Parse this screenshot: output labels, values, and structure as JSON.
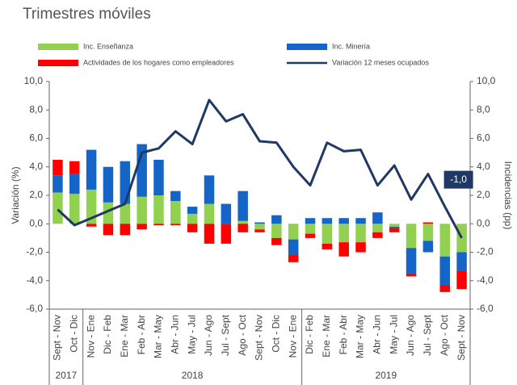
{
  "chart_data": {
    "type": "bar",
    "subtitle": "Trimestres móviles",
    "y_label": "Variación (%)",
    "y2_label": "Incidencias (pp)",
    "categories": [
      "Sept - Nov",
      "Oct - Dic",
      "Nov - Ene",
      "Dic - Feb",
      "Ene - Mar",
      "Feb - Abr",
      "Mar - May",
      "Abr - Jun",
      "May - Jul",
      "Jun - Ago",
      "Jul - Sept",
      "Ago - Oct",
      "Sept - Nov",
      "Oct - Dic",
      "Nov - Ene",
      "Dic - Feb",
      "Ene - Mar",
      "Feb - Abr",
      "Mar - May",
      "Abr - Jun",
      "May - Jul",
      "Jun - Ago",
      "Jul - Sept",
      "Ago - Oct",
      "Sept - Nov"
    ],
    "years": [
      "2017",
      "2018",
      "2019"
    ],
    "series": [
      {
        "name": "Inc. Enseñanza",
        "color": "#92d050",
        "type": "bar",
        "axis": "y2",
        "values": [
          2.2,
          2.1,
          2.4,
          1.5,
          1.4,
          1.9,
          2.0,
          1.6,
          0.7,
          1.4,
          0,
          0.2,
          -0.4,
          -1.0,
          -1.1,
          -0.7,
          -1.4,
          -1.3,
          -1.3,
          -0.6,
          -0.2,
          -1.7,
          -1.2,
          -2.3,
          -2.0
        ]
      },
      {
        "name": "Inc. Minería",
        "color": "#1565c8",
        "type": "bar",
        "axis": "y2",
        "values": [
          1.2,
          1.4,
          2.8,
          2.5,
          3.0,
          3.7,
          2.5,
          0.7,
          0.5,
          2.0,
          1.4,
          2.1,
          0.1,
          0.6,
          -1.1,
          0.4,
          0.4,
          0.4,
          0.4,
          0.8,
          -0.1,
          -1.8,
          -0.8,
          -2.0,
          -1.3
        ]
      },
      {
        "name": "Actividades de los hogares como empleadores",
        "color": "#ff0000",
        "type": "bar",
        "axis": "y2",
        "values": [
          1.1,
          0.9,
          -0.2,
          -0.8,
          -0.8,
          -0.4,
          -0.1,
          -0.1,
          -0.6,
          -1.4,
          -1.4,
          -0.6,
          -0.2,
          -0.5,
          -0.5,
          -0.3,
          -0.4,
          -1.0,
          -0.7,
          -0.4,
          -0.3,
          -0.2,
          0.1,
          -0.5,
          -1.3
        ]
      },
      {
        "name": "Variación 12 meses ocupados",
        "color": "#1f3864",
        "type": "line",
        "values": [
          1.0,
          -0.1,
          0.4,
          0.9,
          1.4,
          5.0,
          5.3,
          6.5,
          5.6,
          8.7,
          7.2,
          7.7,
          5.8,
          5.7,
          4.0,
          2.7,
          5.7,
          5.1,
          5.2,
          2.7,
          4.1,
          1.7,
          3.5,
          1.2,
          -1.0
        ]
      }
    ],
    "annotation": "-1,0",
    "ylim": [
      -6,
      10
    ],
    "yticks": [
      {
        "value": -6,
        "label": "-6,0"
      },
      {
        "value": -4,
        "label": "-4,0"
      },
      {
        "value": -2,
        "label": "-2,0"
      },
      {
        "value": 0,
        "label": "0,0"
      },
      {
        "value": 2,
        "label": "2,0"
      },
      {
        "value": 4,
        "label": "4,0"
      },
      {
        "value": 6,
        "label": "6,0"
      },
      {
        "value": 8,
        "label": "8,0"
      },
      {
        "value": 10,
        "label": "10,0"
      }
    ],
    "y2lim": [
      -6,
      10
    ],
    "y2ticks": [
      {
        "value": -6,
        "label": "-6,0"
      },
      {
        "value": -4,
        "label": "-4,0"
      },
      {
        "value": -2,
        "label": "-2,0"
      },
      {
        "value": 0,
        "label": "0,0"
      },
      {
        "value": 2,
        "label": "2,0"
      },
      {
        "value": 4,
        "label": "4,0"
      },
      {
        "value": 6,
        "label": "6,0"
      },
      {
        "value": 8,
        "label": "8,0"
      },
      {
        "value": 10,
        "label": "10,0"
      }
    ]
  }
}
